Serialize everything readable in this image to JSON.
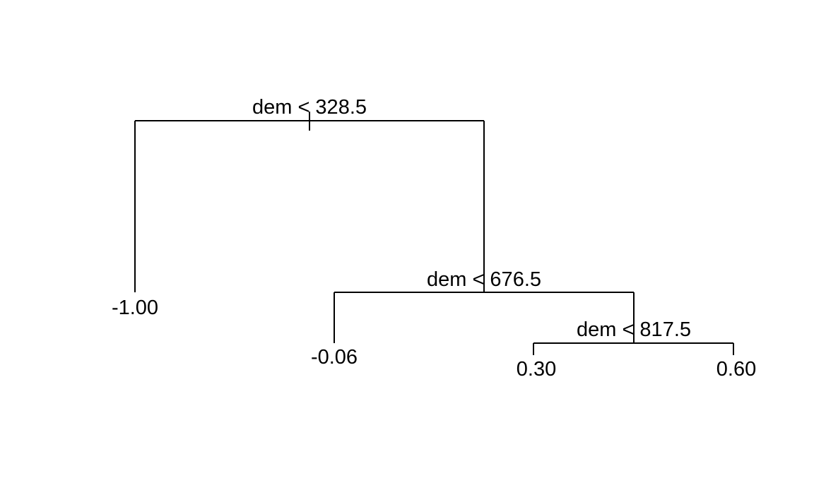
{
  "tree": {
    "splits": [
      {
        "id": "split-1",
        "label": "dem < 328.5",
        "variable": "dem",
        "threshold": 328.5
      },
      {
        "id": "split-2",
        "label": "dem < 676.5",
        "variable": "dem",
        "threshold": 676.5
      },
      {
        "id": "split-3",
        "label": "dem < 817.5",
        "variable": "dem",
        "threshold": 817.5
      }
    ],
    "leaves": [
      {
        "id": "leaf-1",
        "label": "-1.00",
        "parent": "split-1",
        "side": "left"
      },
      {
        "id": "leaf-2",
        "label": "-0.06",
        "parent": "split-2",
        "side": "left"
      },
      {
        "id": "leaf-3",
        "label": "0.30",
        "parent": "split-3",
        "side": "left"
      },
      {
        "id": "leaf-4",
        "label": "0.60",
        "parent": "split-3",
        "side": "right"
      }
    ]
  },
  "colors": {
    "line": "#000000",
    "text": "#000000",
    "background": "#ffffff"
  }
}
